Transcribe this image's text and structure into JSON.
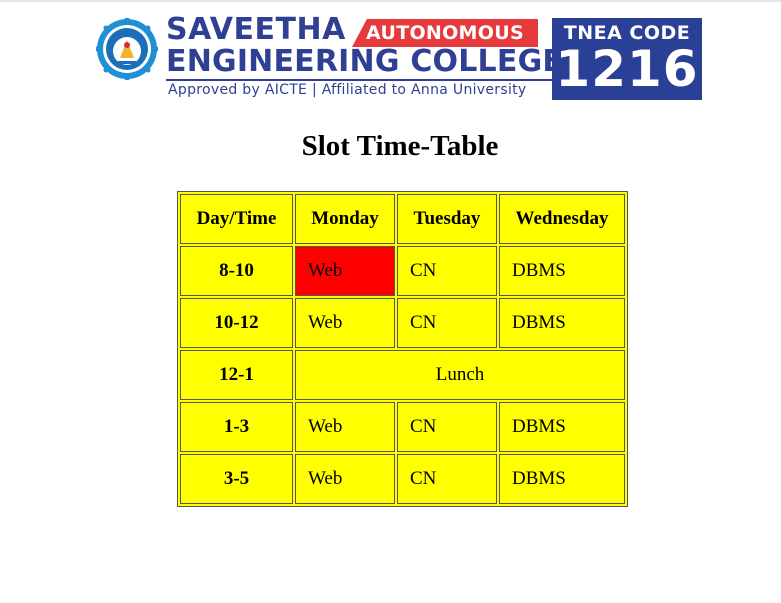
{
  "logo": {
    "line1": "SAVEETHA",
    "badge": "AUTONOMOUS",
    "line2": "ENGINEERING COLLEGE",
    "tagline": "Approved by AICTE  |  Affiliated to Anna University",
    "code_label": "TNEA CODE",
    "code_number": "1216",
    "brand_color": "#2f3f93",
    "badge_color": "#e63a3c"
  },
  "title": "Slot Time-Table",
  "table": {
    "headers": [
      "Day/Time",
      "Monday",
      "Tuesday",
      "Wednesday"
    ],
    "rows": [
      {
        "time": "8-10",
        "cells": [
          "Web",
          "CN",
          "DBMS"
        ]
      },
      {
        "time": "10-12",
        "cells": [
          "Web",
          "CN",
          "DBMS"
        ]
      },
      {
        "time": "12-1",
        "merged": "Lunch"
      },
      {
        "time": "1-3",
        "cells": [
          "Web",
          "CN",
          "DBMS"
        ]
      },
      {
        "time": "3-5",
        "cells": [
          "Web",
          "CN",
          "DBMS"
        ]
      }
    ],
    "cell_color": "#ffff00",
    "highlight_color": "#ff0000"
  }
}
